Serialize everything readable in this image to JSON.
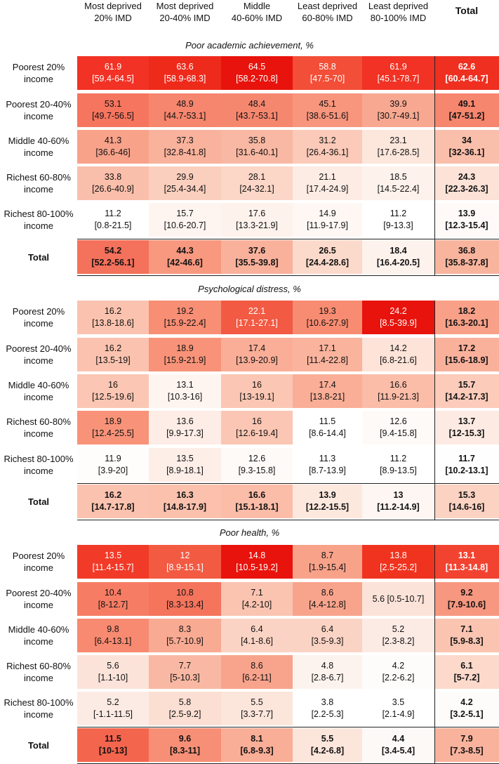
{
  "chart_data": {
    "type": "table",
    "columns": [
      "Most deprived\n20% IMD",
      "Most deprived\n20-40% IMD",
      "Middle\n40-60% IMD",
      "Least deprived\n60-80% IMD",
      "Least deprived\n80-100% IMD",
      "Total"
    ],
    "sections": [
      {
        "title": "Poor academic achievement, %",
        "rows": [
          {
            "label": "Poorest 20%\nincome",
            "cells": [
              {
                "v": "61.9",
                "ci": "[59.4-64.5]",
                "color": "#f13224"
              },
              {
                "v": "63.6",
                "ci": "[58.9-68.3]",
                "color": "#ee2a1b"
              },
              {
                "v": "64.5",
                "ci": "[58.2-70.8]",
                "color": "#e8130c"
              },
              {
                "v": "58.8",
                "ci": "[47.5-70]",
                "color": "#f34e37"
              },
              {
                "v": "61.9",
                "ci": "[45.1-78.7]",
                "color": "#f13224"
              },
              {
                "v": "62.6",
                "ci": "[60.4-64.7]",
                "color": "#ef2f20"
              }
            ]
          },
          {
            "label": "Poorest 20-40%\nincome",
            "cells": [
              {
                "v": "53.1",
                "ci": "[49.7-56.5]",
                "color": "#f5755f"
              },
              {
                "v": "48.9",
                "ci": "[44.7-53.1]",
                "color": "#f6866e"
              },
              {
                "v": "48.4",
                "ci": "[43.7-53.1]",
                "color": "#f6876f"
              },
              {
                "v": "45.1",
                "ci": "[38.6-51.6]",
                "color": "#f7957d"
              },
              {
                "v": "39.9",
                "ci": "[30.7-49.1]",
                "color": "#f8a891"
              },
              {
                "v": "49.1",
                "ci": "[47-51.2]",
                "color": "#f6866e"
              }
            ]
          },
          {
            "label": "Middle 40-60%\nincome",
            "cells": [
              {
                "v": "41.3",
                "ci": "[36.6-46]",
                "color": "#f8a28a"
              },
              {
                "v": "37.3",
                "ci": "[32.8-41.8]",
                "color": "#f9b29c"
              },
              {
                "v": "35.8",
                "ci": "[31.6-40.1]",
                "color": "#f9b8a3"
              },
              {
                "v": "31.2",
                "ci": "[26.4-36.1]",
                "color": "#fbcab8"
              },
              {
                "v": "23.1",
                "ci": "[17.6-28.5]",
                "color": "#fde6dc"
              },
              {
                "v": "34",
                "ci": "[32-36.1]",
                "color": "#fabfab"
              }
            ]
          },
          {
            "label": "Richest 60-80%\nincome",
            "cells": [
              {
                "v": "33.8",
                "ci": "[26.6-40.9]",
                "color": "#fabfab"
              },
              {
                "v": "29.9",
                "ci": "[25.4-34.4]",
                "color": "#fbcfbe"
              },
              {
                "v": "28.1",
                "ci": "[24-32.1]",
                "color": "#fcd6c7"
              },
              {
                "v": "21.1",
                "ci": "[17.4-24.9]",
                "color": "#fdece4"
              },
              {
                "v": "18.5",
                "ci": "[14.5-22.4]",
                "color": "#fef2ec"
              },
              {
                "v": "24.3",
                "ci": "[22.3-26.3]",
                "color": "#fce2d7"
              }
            ]
          },
          {
            "label": "Richest 80-100%\nincome",
            "cells": [
              {
                "v": "11.2",
                "ci": "[0.8-21.5]",
                "color": "#ffffff"
              },
              {
                "v": "15.7",
                "ci": "[10.6-20.7]",
                "color": "#fef5f1"
              },
              {
                "v": "17.6",
                "ci": "[13.3-21.9]",
                "color": "#fef2ec"
              },
              {
                "v": "14.9",
                "ci": "[11.9-17.9]",
                "color": "#fef7f4"
              },
              {
                "v": "11.2",
                "ci": "[9-13.3]",
                "color": "#ffffff"
              },
              {
                "v": "13.9",
                "ci": "[12.3-15.4]",
                "color": "#fff9f7"
              }
            ]
          },
          {
            "label": "Total",
            "total": true,
            "cells": [
              {
                "v": "54.2",
                "ci": "[52.2-56.1]",
                "color": "#f4715b"
              },
              {
                "v": "44.3",
                "ci": "[42-46.6]",
                "color": "#f7987f"
              },
              {
                "v": "37.6",
                "ci": "[35.5-39.8]",
                "color": "#f9b19b"
              },
              {
                "v": "26.5",
                "ci": "[24.4-28.6]",
                "color": "#fcdacb"
              },
              {
                "v": "18.4",
                "ci": "[16.4-20.5]",
                "color": "#fef2ec"
              },
              {
                "v": "36.8",
                "ci": "[35.8-37.8]",
                "color": "#f9b49e"
              }
            ]
          }
        ]
      },
      {
        "title": "Psychological distress, %",
        "rows": [
          {
            "label": "Poorest 20%\nincome",
            "cells": [
              {
                "v": "16.2",
                "ci": "[13.8-18.6]",
                "color": "#fbc3af"
              },
              {
                "v": "19.2",
                "ci": "[15.9-22.4]",
                "color": "#f88e74"
              },
              {
                "v": "22.1",
                "ci": "[17.1-27.1]",
                "color": "#f25a43"
              },
              {
                "v": "19.3",
                "ci": "[10.6-27.9]",
                "color": "#f88c72"
              },
              {
                "v": "24.2",
                "ci": "[8.5-39.9]",
                "color": "#e8130c"
              },
              {
                "v": "18.2",
                "ci": "[16.3-20.1]",
                "color": "#f9a088"
              }
            ]
          },
          {
            "label": "Poorest 20-40%\nincome",
            "cells": [
              {
                "v": "16.2",
                "ci": "[13.5-19]",
                "color": "#fbc3af"
              },
              {
                "v": "18.9",
                "ci": "[15.9-21.9]",
                "color": "#f89379"
              },
              {
                "v": "17.4",
                "ci": "[13.9-20.9]",
                "color": "#faae97"
              },
              {
                "v": "17.1",
                "ci": "[11.4-22.8]",
                "color": "#fab39d"
              },
              {
                "v": "14.2",
                "ci": "[6.8-21.6]",
                "color": "#fde3d8"
              },
              {
                "v": "17.2",
                "ci": "[15.6-18.9]",
                "color": "#fab19b"
              }
            ]
          },
          {
            "label": "Middle 40-60%\nincome",
            "cells": [
              {
                "v": "16",
                "ci": "[12.5-19.6]",
                "color": "#fbc6b3"
              },
              {
                "v": "13.1",
                "ci": "[10.3-16]",
                "color": "#fef5f1"
              },
              {
                "v": "16",
                "ci": "[13-19.1]",
                "color": "#fbc6b3"
              },
              {
                "v": "17.4",
                "ci": "[13.8-21]",
                "color": "#faae97"
              },
              {
                "v": "16.6",
                "ci": "[11.9-21.3]",
                "color": "#fbbca8"
              },
              {
                "v": "15.7",
                "ci": "[14.2-17.3]",
                "color": "#fccbba"
              }
            ]
          },
          {
            "label": "Richest 60-80%\nincome",
            "cells": [
              {
                "v": "18.9",
                "ci": "[12.4-25.5]",
                "color": "#f89379"
              },
              {
                "v": "13.6",
                "ci": "[9.9-17.3]",
                "color": "#fdede6"
              },
              {
                "v": "16",
                "ci": "[12.6-19.4]",
                "color": "#fbc6b3"
              },
              {
                "v": "11.5",
                "ci": "[8.6-14.4]",
                "color": "#ffffff"
              },
              {
                "v": "12.6",
                "ci": "[9.4-15.8]",
                "color": "#fefaf8"
              },
              {
                "v": "13.7",
                "ci": "[12-15.3]",
                "color": "#fdebe3"
              }
            ]
          },
          {
            "label": "Richest 80-100%\nincome",
            "cells": [
              {
                "v": "11.9",
                "ci": "[3.9-20]",
                "color": "#fffdfc"
              },
              {
                "v": "13.5",
                "ci": "[8.9-18.1]",
                "color": "#fdeee8"
              },
              {
                "v": "12.6",
                "ci": "[9.3-15.8]",
                "color": "#fefaf8"
              },
              {
                "v": "11.3",
                "ci": "[8.7-13.9]",
                "color": "#ffffff"
              },
              {
                "v": "11.2",
                "ci": "[8.9-13.5]",
                "color": "#ffffff"
              },
              {
                "v": "11.7",
                "ci": "[10.2-13.1]",
                "color": "#fffefe"
              }
            ]
          },
          {
            "label": "Total",
            "total": true,
            "cells": [
              {
                "v": "16.2",
                "ci": "[14.7-17.8]",
                "color": "#fbc3af"
              },
              {
                "v": "16.3",
                "ci": "[14.8-17.9]",
                "color": "#fbc1ad"
              },
              {
                "v": "16.6",
                "ci": "[15.1-18.1]",
                "color": "#fbbca8"
              },
              {
                "v": "13.9",
                "ci": "[12.2-15.5]",
                "color": "#fde8de"
              },
              {
                "v": "13",
                "ci": "[11.2-14.9]",
                "color": "#fef6f2"
              },
              {
                "v": "15.3",
                "ci": "[14.6-16]",
                "color": "#fcd2c2"
              }
            ]
          }
        ]
      },
      {
        "title": "Poor health, %",
        "rows": [
          {
            "label": "Poorest 20%\nincome",
            "cells": [
              {
                "v": "13.5",
                "ci": "[11.4-15.7]",
                "color": "#f13a28"
              },
              {
                "v": "12",
                "ci": "[8.9-15.1]",
                "color": "#f35a42"
              },
              {
                "v": "14.8",
                "ci": "[10.5-19.2]",
                "color": "#e8130c"
              },
              {
                "v": "8.7",
                "ci": "[1.9-15.4]",
                "color": "#f8a28a"
              },
              {
                "v": "13.8",
                "ci": "[2.5-25.2]",
                "color": "#f0331f"
              },
              {
                "v": "13.1",
                "ci": "[11.3-14.8]",
                "color": "#f24331"
              }
            ]
          },
          {
            "label": "Poorest 20-40%\nincome",
            "cells": [
              {
                "v": "10.4",
                "ci": "[8-12.7]",
                "color": "#f67d64"
              },
              {
                "v": "10.8",
                "ci": "[8.3-13.4]",
                "color": "#f5745c"
              },
              {
                "v": "7.1",
                "ci": "[4.2-10]",
                "color": "#fac4b1"
              },
              {
                "v": "8.6",
                "ci": "[4.4-12.8]",
                "color": "#f8a48c"
              },
              {
                "v": "5.6 [0.5-10.7]",
                "ci": "",
                "color": "#fce3d9"
              },
              {
                "v": "9.2",
                "ci": "[7.9-10.6]",
                "color": "#f79780"
              }
            ]
          },
          {
            "label": "Middle 40-60%\nincome",
            "cells": [
              {
                "v": "9.8",
                "ci": "[6.4-13.1]",
                "color": "#f78a71"
              },
              {
                "v": "8.3",
                "ci": "[5.7-10.9]",
                "color": "#f9aa93"
              },
              {
                "v": "6.4",
                "ci": "[4.1-8.6]",
                "color": "#fbd3c4"
              },
              {
                "v": "6.4",
                "ci": "[3.5-9.3]",
                "color": "#fbd3c4"
              },
              {
                "v": "5.2",
                "ci": "[2.3-8.2]",
                "color": "#fcebe4"
              },
              {
                "v": "7.1",
                "ci": "[5.9-8.3]",
                "color": "#fac4b1"
              }
            ]
          },
          {
            "label": "Richest 60-80%\nincome",
            "cells": [
              {
                "v": "5.6",
                "ci": "[1.1-10]",
                "color": "#fce3d9"
              },
              {
                "v": "7.7",
                "ci": "[5-10.3]",
                "color": "#f9b8a3"
              },
              {
                "v": "8.6",
                "ci": "[6.2-11]",
                "color": "#f8a48c"
              },
              {
                "v": "4.8",
                "ci": "[2.8-6.7]",
                "color": "#fdf3ee"
              },
              {
                "v": "4.2",
                "ci": "[2.2-6.2]",
                "color": "#fefcfb"
              },
              {
                "v": "6.1",
                "ci": "[5-7.2]",
                "color": "#fcd9cb"
              }
            ]
          },
          {
            "label": "Richest 80-100%\nincome",
            "cells": [
              {
                "v": "5.2",
                "ci": "[-1.1-11.5]",
                "color": "#fcebe4"
              },
              {
                "v": "5.8",
                "ci": "[2.5-9.2]",
                "color": "#fcdfd3"
              },
              {
                "v": "5.5",
                "ci": "[3.3-7.7]",
                "color": "#fce5db"
              },
              {
                "v": "3.8",
                "ci": "[2.2-5.3]",
                "color": "#ffffff"
              },
              {
                "v": "3.5",
                "ci": "[2.1-4.9]",
                "color": "#ffffff"
              },
              {
                "v": "4.2",
                "ci": "[3.2-5.1]",
                "color": "#fefcfb"
              }
            ]
          },
          {
            "label": "Total",
            "total": true,
            "cells": [
              {
                "v": "11.5",
                "ci": "[10-13]",
                "color": "#f4654e"
              },
              {
                "v": "9.6",
                "ci": "[8.3-11]",
                "color": "#f78f76"
              },
              {
                "v": "8.1",
                "ci": "[6.8-9.3]",
                "color": "#f9ae97"
              },
              {
                "v": "5.5",
                "ci": "[4.2-6.8]",
                "color": "#fce5db"
              },
              {
                "v": "4.4",
                "ci": "[3.4-5.4]",
                "color": "#fdf9f7"
              },
              {
                "v": "7.9",
                "ci": "[7.3-8.5]",
                "color": "#f9b29c"
              }
            ]
          }
        ]
      }
    ]
  }
}
